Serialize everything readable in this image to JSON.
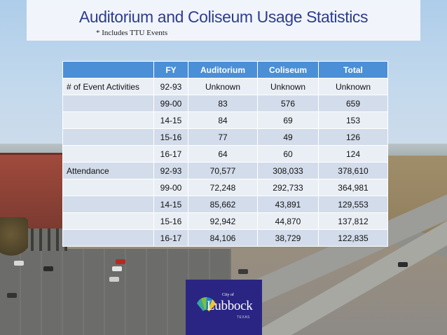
{
  "header": {
    "title": "Auditorium and Coliseum Usage Statistics",
    "footnote": "* Includes TTU Events"
  },
  "table": {
    "columns": [
      "",
      "FY",
      "Auditorium",
      "Coliseum",
      "Total"
    ],
    "rows": [
      {
        "label": "# of Event Activities",
        "fy": "92-93",
        "auditorium": "Unknown",
        "coliseum": "Unknown",
        "total": "Unknown"
      },
      {
        "label": "",
        "fy": "99-00",
        "auditorium": "83",
        "coliseum": "576",
        "total": "659"
      },
      {
        "label": "",
        "fy": "14-15",
        "auditorium": "84",
        "coliseum": "69",
        "total": "153"
      },
      {
        "label": "",
        "fy": "15-16",
        "auditorium": "77",
        "coliseum": "49",
        "total": "126"
      },
      {
        "label": "",
        "fy": "16-17",
        "auditorium": "64",
        "coliseum": "60",
        "total": "124"
      },
      {
        "label": "Attendance",
        "fy": "92-93",
        "auditorium": "70,577",
        "coliseum": "308,033",
        "total": "378,610"
      },
      {
        "label": "",
        "fy": "99-00",
        "auditorium": "72,248",
        "coliseum": "292,733",
        "total": "364,981"
      },
      {
        "label": "",
        "fy": "14-15",
        "auditorium": "85,662",
        "coliseum": "43,891",
        "total": "129,553"
      },
      {
        "label": "",
        "fy": "15-16",
        "auditorium": "92,942",
        "coliseum": "44,870",
        "total": "137,812"
      },
      {
        "label": "",
        "fy": "16-17",
        "auditorium": "84,106",
        "coliseum": "38,729",
        "total": "122,835"
      }
    ]
  },
  "logo": {
    "city_of": "City of",
    "name": "Lubbock",
    "state": "TEXAS"
  },
  "colors": {
    "title": "#2d3c8e",
    "header_fill": "#4b8fd6",
    "row_light": "#eaeff6",
    "row_dark": "#d3dcea",
    "logo_bg": "#2a2583"
  }
}
